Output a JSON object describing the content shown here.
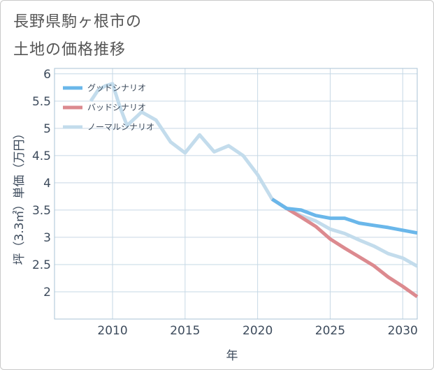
{
  "title_line1": "長野県駒ヶ根市の",
  "title_line2": "土地の価格推移",
  "chart_data": {
    "type": "line",
    "xlabel": "年",
    "ylabel": "坪（3.3㎡）単価（万円）",
    "xlim": [
      2006,
      2031
    ],
    "ylim": [
      1.5,
      6.1
    ],
    "xticks": [
      2010,
      2015,
      2020,
      2025,
      2030
    ],
    "yticks": [
      2,
      2.5,
      3,
      3.5,
      4,
      4.5,
      5,
      5.5,
      6
    ],
    "grid": true,
    "legend_position": "top-left",
    "series": [
      {
        "name": "グッドシナリオ",
        "color": "#6ab7ea",
        "x": [
          2021,
          2022,
          2023,
          2024,
          2025,
          2026,
          2027,
          2028,
          2029,
          2030,
          2031
        ],
        "y": [
          3.7,
          3.53,
          3.5,
          3.4,
          3.35,
          3.35,
          3.26,
          3.22,
          3.18,
          3.13,
          3.08
        ]
      },
      {
        "name": "バッドシナリオ",
        "color": "#dc8a8f",
        "x": [
          2021,
          2022,
          2023,
          2024,
          2025,
          2026,
          2027,
          2028,
          2029,
          2030,
          2031
        ],
        "y": [
          3.7,
          3.53,
          3.37,
          3.2,
          2.97,
          2.8,
          2.64,
          2.48,
          2.27,
          2.1,
          1.91
        ]
      },
      {
        "name": "ノーマルシナリオ",
        "color": "#c3dcec",
        "x": [
          2008.5,
          2009,
          2009.5,
          2010,
          2010.5,
          2011,
          2012,
          2013,
          2014,
          2015,
          2016,
          2017,
          2018,
          2019,
          2020,
          2021,
          2022,
          2023,
          2024,
          2025,
          2026,
          2027,
          2028,
          2029,
          2030,
          2031
        ],
        "y": [
          5.5,
          5.7,
          5.78,
          5.82,
          5.4,
          5.05,
          5.3,
          5.15,
          4.75,
          4.55,
          4.88,
          4.57,
          4.68,
          4.5,
          4.15,
          3.7,
          3.53,
          3.4,
          3.3,
          3.15,
          3.07,
          2.95,
          2.84,
          2.7,
          2.62,
          2.47
        ]
      }
    ]
  }
}
